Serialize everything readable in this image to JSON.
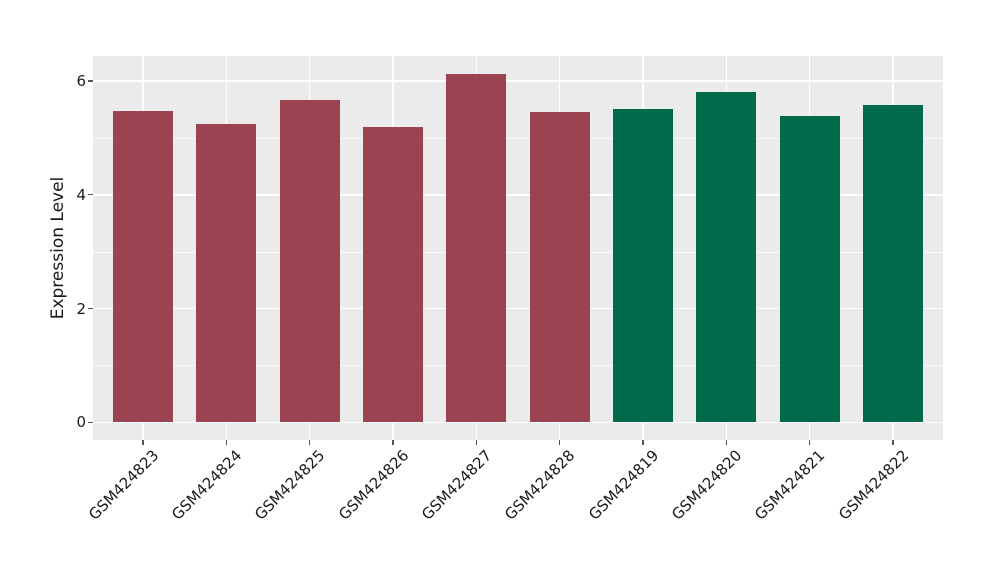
{
  "chart_data": {
    "type": "bar",
    "title": "",
    "xlabel": "",
    "ylabel": "Expression Level",
    "categories": [
      "GSM424823",
      "GSM424824",
      "GSM424825",
      "GSM424826",
      "GSM424827",
      "GSM424828",
      "GSM424819",
      "GSM424820",
      "GSM424821",
      "GSM424822"
    ],
    "values": [
      5.47,
      5.24,
      5.67,
      5.2,
      6.13,
      5.45,
      5.5,
      5.8,
      5.39,
      5.58
    ],
    "bar_colors": [
      "#9B4351",
      "#9B4351",
      "#9B4351",
      "#9B4351",
      "#9B4351",
      "#9B4351",
      "#016A4B",
      "#016A4B",
      "#016A4B",
      "#016A4B"
    ],
    "group_colors": {
      "red_group": "#9B4351",
      "green_group": "#016A4B"
    },
    "ylim": [
      -0.31,
      6.44
    ],
    "yticks": [
      0,
      2,
      4,
      6
    ],
    "ytick_labels": [
      "0",
      "2",
      "4",
      "6"
    ],
    "yminor_ticks": [
      1,
      3,
      5
    ],
    "xtick_rotation_deg": 45,
    "grid": "on",
    "legend": "none",
    "panel_bg": "#EBEBEB",
    "figure_bg": "#FFFFFF",
    "gridline_color": "#FFFFFF"
  }
}
